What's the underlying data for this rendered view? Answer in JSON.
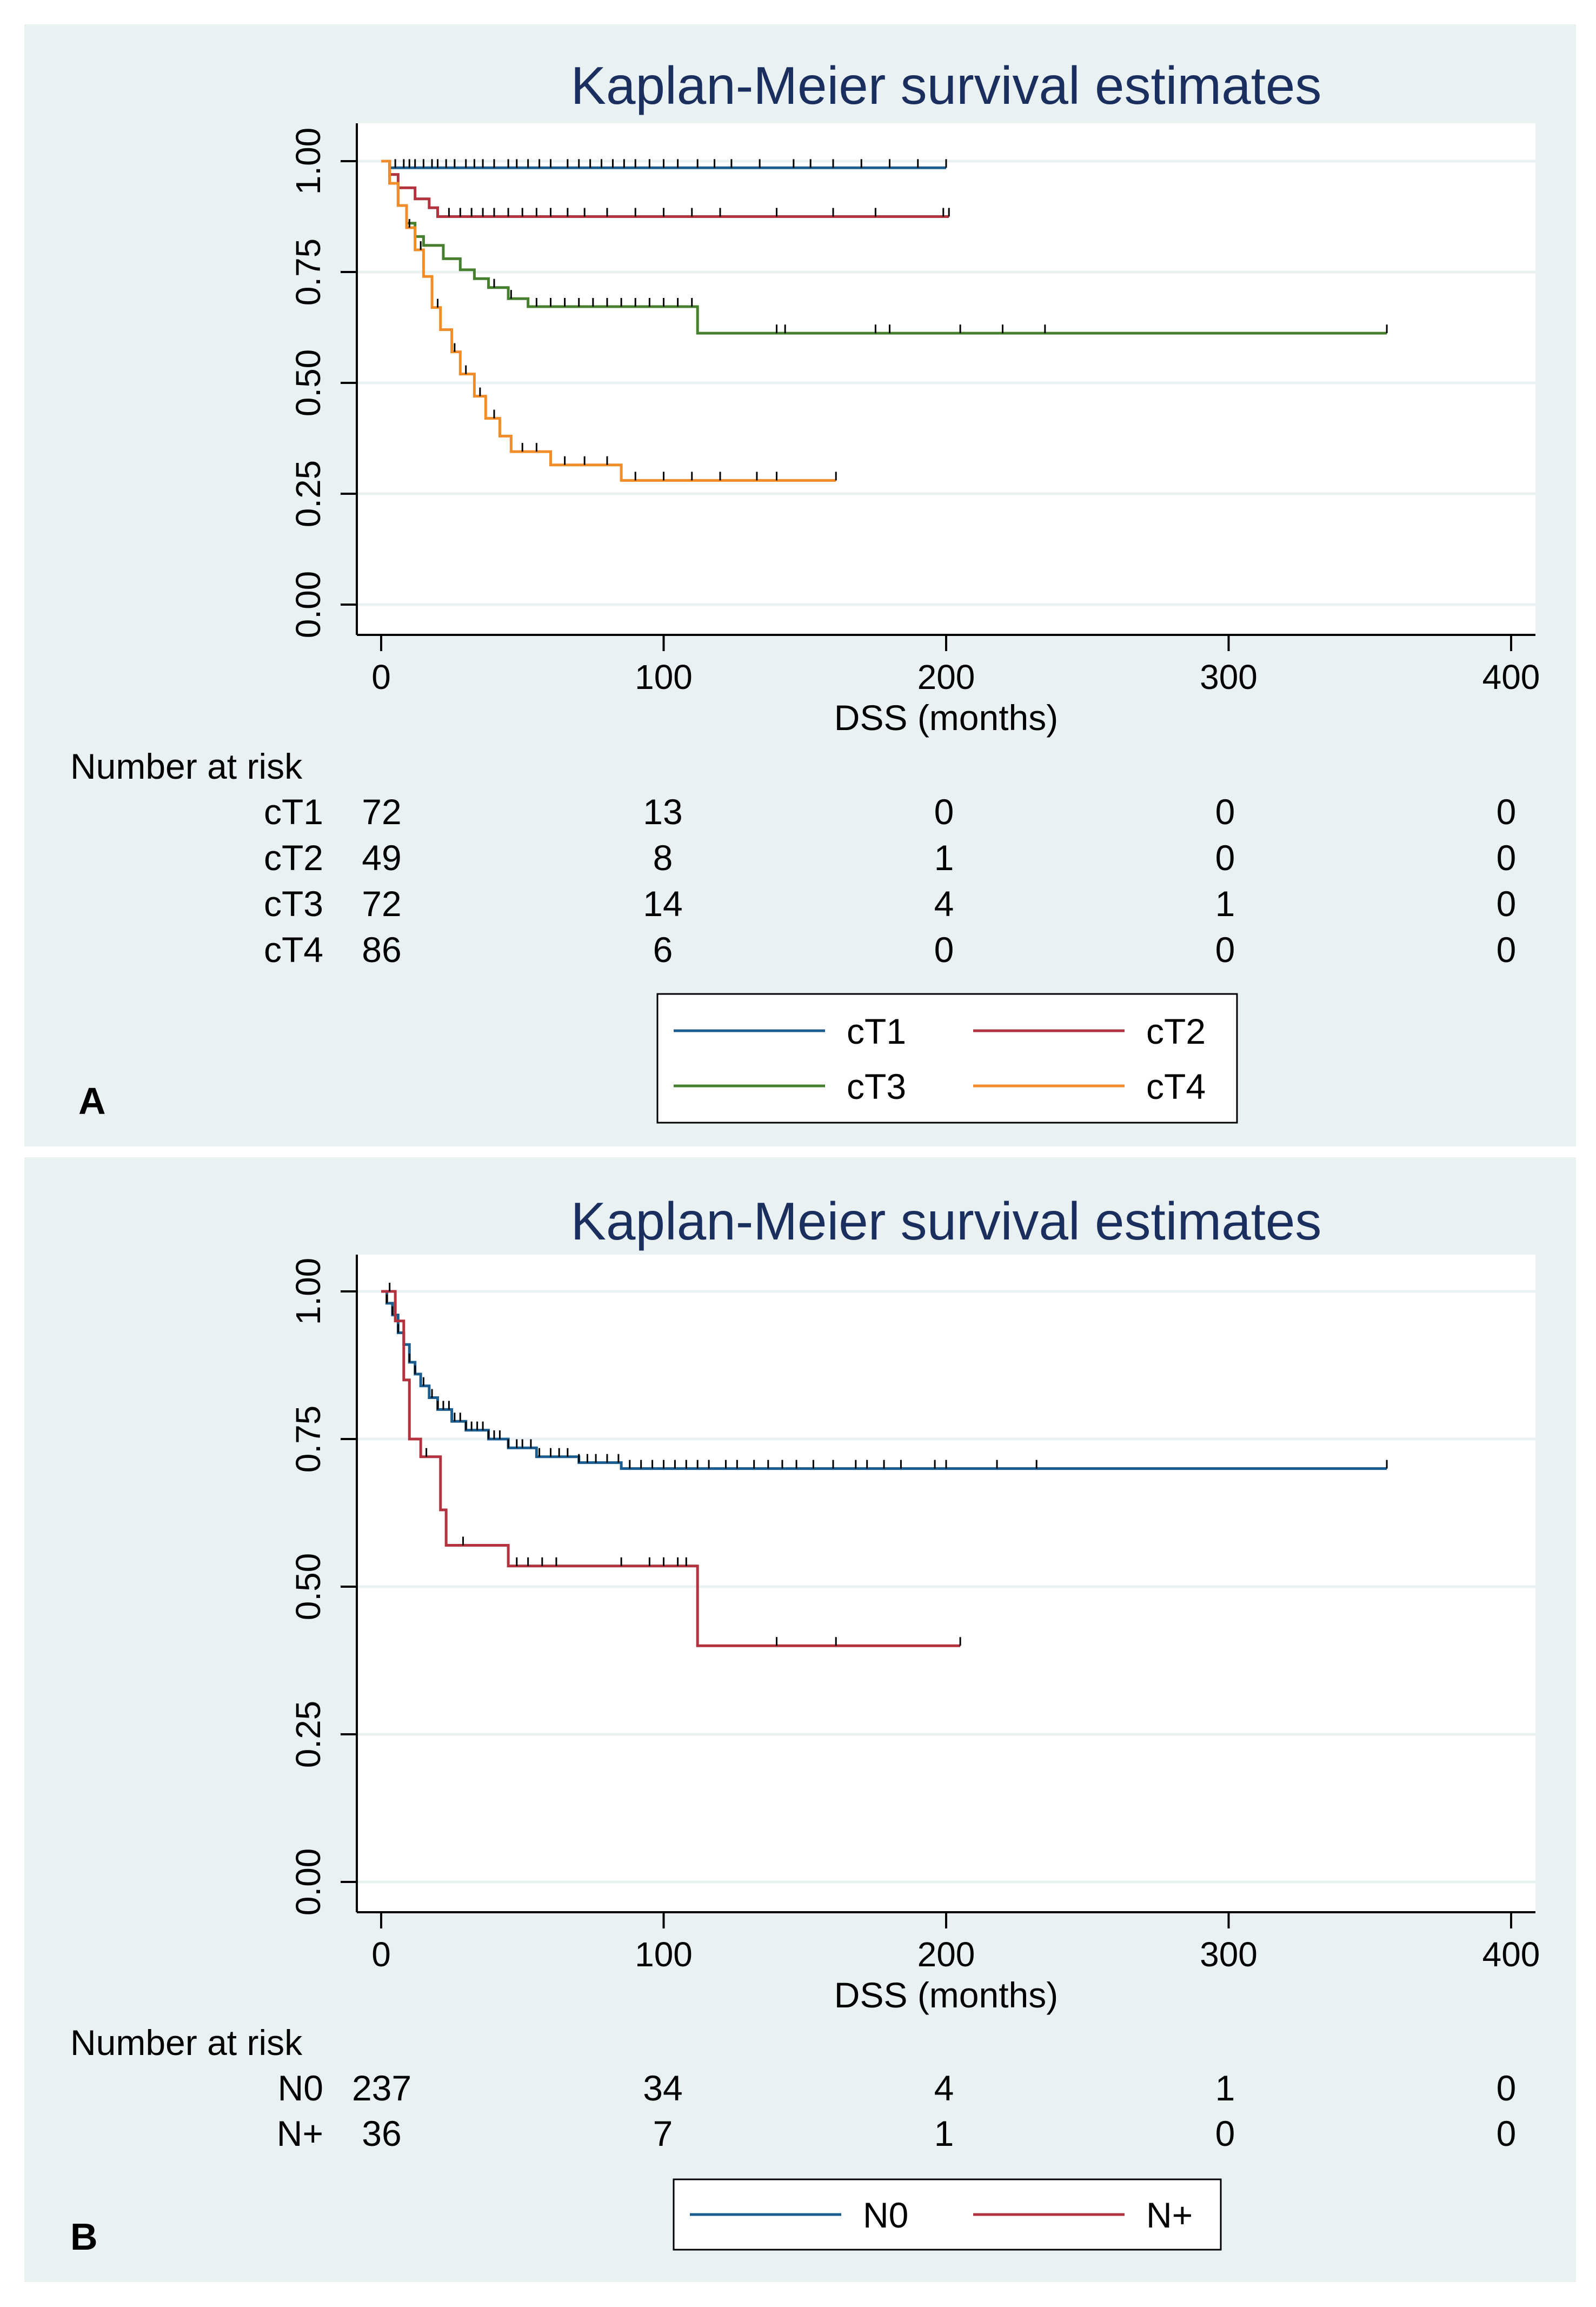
{
  "colors": {
    "background": "#e9f1f3",
    "plot_background": "#ffffff",
    "grid": "#e9f1f3",
    "title": "#1a2f5e",
    "blue": "#1b5d8f",
    "red": "#b2323d",
    "green": "#46802e",
    "orange": "#f28c28"
  },
  "chart_data": [
    {
      "type": "line",
      "panel_label": "A",
      "title": "Kaplan-Meier survival estimates",
      "xlabel": "DSS (months)",
      "ylabel": "",
      "xlim": [
        0,
        400
      ],
      "ylim": [
        0,
        1
      ],
      "x_ticks": [
        0,
        100,
        200,
        300,
        400
      ],
      "y_ticks": [
        "0.00",
        "0.25",
        "0.50",
        "0.75",
        "1.00"
      ],
      "grid": true,
      "legend_placement": "bottom",
      "series": [
        {
          "name": "cT1",
          "color": "#1b5d8f",
          "steps": [
            [
              0,
              1.0
            ],
            [
              3,
              0.985
            ],
            [
              200,
              0.985
            ]
          ],
          "censor": [
            5,
            8,
            10,
            12,
            15,
            18,
            20,
            23,
            26,
            30,
            33,
            36,
            40,
            45,
            48,
            52,
            56,
            60,
            66,
            70,
            74,
            78,
            82,
            86,
            90,
            95,
            100,
            105,
            112,
            118,
            124,
            134,
            146,
            152,
            160,
            170,
            180,
            190,
            200
          ]
        },
        {
          "name": "cT2",
          "color": "#b2323d",
          "steps": [
            [
              0,
              1.0
            ],
            [
              3,
              0.97
            ],
            [
              6,
              0.94
            ],
            [
              12,
              0.915
            ],
            [
              17,
              0.895
            ],
            [
              20,
              0.875
            ],
            [
              201,
              0.875
            ]
          ],
          "censor": [
            24,
            28,
            32,
            36,
            40,
            45,
            50,
            55,
            60,
            66,
            72,
            80,
            90,
            100,
            110,
            120,
            140,
            160,
            175,
            199,
            201
          ]
        },
        {
          "name": "cT3",
          "color": "#46802e",
          "steps": [
            [
              0,
              1.0
            ],
            [
              3,
              0.95
            ],
            [
              6,
              0.9
            ],
            [
              9,
              0.86
            ],
            [
              12,
              0.83
            ],
            [
              15,
              0.81
            ],
            [
              22,
              0.78
            ],
            [
              28,
              0.755
            ],
            [
              33,
              0.735
            ],
            [
              38,
              0.715
            ],
            [
              45,
              0.69
            ],
            [
              52,
              0.672
            ],
            [
              112,
              0.612
            ],
            [
              356,
              0.612
            ]
          ],
          "censor": [
            40,
            46,
            55,
            60,
            65,
            70,
            75,
            80,
            85,
            90,
            95,
            100,
            105,
            110,
            140,
            143,
            175,
            180,
            205,
            220,
            235,
            356
          ]
        },
        {
          "name": "cT4",
          "color": "#f28c28",
          "steps": [
            [
              0,
              1.0
            ],
            [
              3,
              0.95
            ],
            [
              6,
              0.9
            ],
            [
              9,
              0.85
            ],
            [
              12,
              0.8
            ],
            [
              15,
              0.74
            ],
            [
              18,
              0.67
            ],
            [
              21,
              0.62
            ],
            [
              25,
              0.57
            ],
            [
              28,
              0.52
            ],
            [
              33,
              0.47
            ],
            [
              37,
              0.42
            ],
            [
              42,
              0.38
            ],
            [
              46,
              0.345
            ],
            [
              60,
              0.315
            ],
            [
              85,
              0.28
            ],
            [
              161,
              0.28
            ]
          ],
          "censor": [
            10,
            14,
            20,
            26,
            30,
            35,
            40,
            50,
            55,
            65,
            72,
            80,
            90,
            100,
            110,
            120,
            133,
            140,
            161
          ]
        }
      ],
      "risk_table": {
        "heading": "Number at risk",
        "times": [
          0,
          100,
          200,
          300,
          400
        ],
        "rows": [
          {
            "label": "cT1",
            "values": [
              "72",
              "13",
              "0",
              "0",
              "0"
            ]
          },
          {
            "label": "cT2",
            "values": [
              "49",
              "8",
              "1",
              "0",
              "0"
            ]
          },
          {
            "label": "cT3",
            "values": [
              "72",
              "14",
              "4",
              "1",
              "0"
            ]
          },
          {
            "label": "cT4",
            "values": [
              "86",
              "6",
              "0",
              "0",
              "0"
            ]
          }
        ]
      }
    },
    {
      "type": "line",
      "panel_label": "B",
      "title": "Kaplan-Meier survival estimates",
      "xlabel": "DSS (months)",
      "ylabel": "",
      "xlim": [
        0,
        400
      ],
      "ylim": [
        0,
        1
      ],
      "x_ticks": [
        0,
        100,
        200,
        300,
        400
      ],
      "y_ticks": [
        "0.00",
        "0.25",
        "0.50",
        "0.75",
        "1.00"
      ],
      "grid": true,
      "legend_placement": "bottom",
      "series": [
        {
          "name": "N0",
          "color": "#1b5d8f",
          "steps": [
            [
              0,
              1.0
            ],
            [
              2,
              0.98
            ],
            [
              4,
              0.96
            ],
            [
              6,
              0.93
            ],
            [
              8,
              0.91
            ],
            [
              10,
              0.88
            ],
            [
              12,
              0.86
            ],
            [
              14,
              0.84
            ],
            [
              17,
              0.82
            ],
            [
              20,
              0.8
            ],
            [
              25,
              0.78
            ],
            [
              30,
              0.765
            ],
            [
              38,
              0.75
            ],
            [
              45,
              0.735
            ],
            [
              55,
              0.72
            ],
            [
              70,
              0.71
            ],
            [
              85,
              0.7
            ],
            [
              356,
              0.7
            ]
          ],
          "censor": [
            2,
            4,
            6,
            8,
            10,
            12,
            15,
            18,
            20,
            22,
            24,
            26,
            28,
            30,
            32,
            34,
            36,
            38,
            40,
            42,
            45,
            48,
            50,
            53,
            56,
            60,
            63,
            66,
            70,
            73,
            76,
            80,
            84,
            88,
            92,
            96,
            100,
            104,
            108,
            112,
            116,
            122,
            126,
            132,
            137,
            142,
            147,
            153,
            160,
            168,
            172,
            178,
            184,
            196,
            200,
            218,
            232,
            356
          ]
        },
        {
          "name": "N+",
          "color": "#b2323d",
          "steps": [
            [
              0,
              1.0
            ],
            [
              5,
              0.95
            ],
            [
              8,
              0.85
            ],
            [
              10,
              0.75
            ],
            [
              14,
              0.72
            ],
            [
              21,
              0.63
            ],
            [
              23,
              0.57
            ],
            [
              45,
              0.535
            ],
            [
              112,
              0.4
            ],
            [
              205,
              0.4
            ]
          ],
          "censor": [
            3,
            16,
            29,
            48,
            52,
            57,
            62,
            85,
            95,
            100,
            105,
            108,
            140,
            161,
            205
          ]
        }
      ],
      "risk_table": {
        "heading": "Number at risk",
        "times": [
          0,
          100,
          200,
          300,
          400
        ],
        "rows": [
          {
            "label": "N0",
            "values": [
              "237",
              "34",
              "4",
              "1",
              "0"
            ]
          },
          {
            "label": "N+",
            "values": [
              "36",
              "7",
              "1",
              "0",
              "0"
            ]
          }
        ]
      }
    }
  ]
}
